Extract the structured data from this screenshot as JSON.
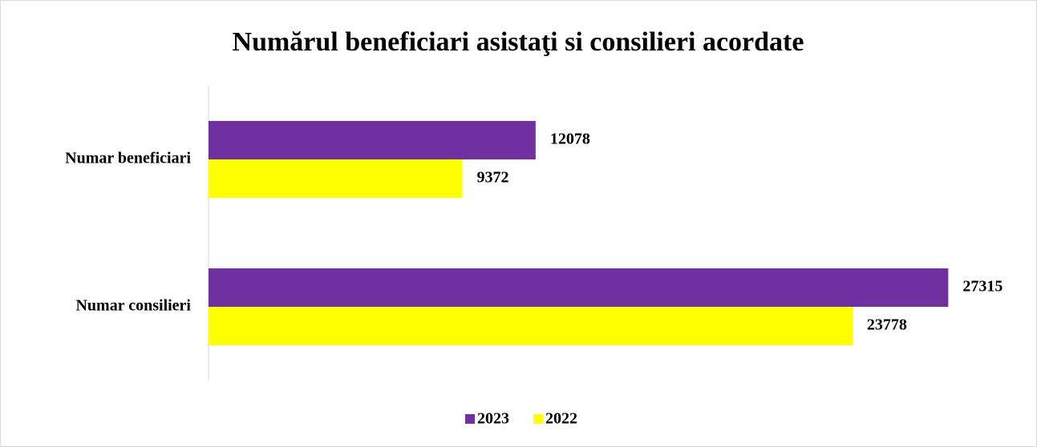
{
  "chart_data": {
    "type": "hbar",
    "title": "Numărul beneficiari asistaţi si consilieri acordate",
    "categories": [
      "Numar beneficiari",
      "Numar consilieri"
    ],
    "series": [
      {
        "name": "2023",
        "color": "#7030a0",
        "values": [
          12078,
          27315
        ]
      },
      {
        "name": "2022",
        "color": "#ffff00",
        "values": [
          9372,
          23778
        ]
      }
    ],
    "xlim": [
      0,
      30000
    ],
    "legend": "bottom"
  }
}
